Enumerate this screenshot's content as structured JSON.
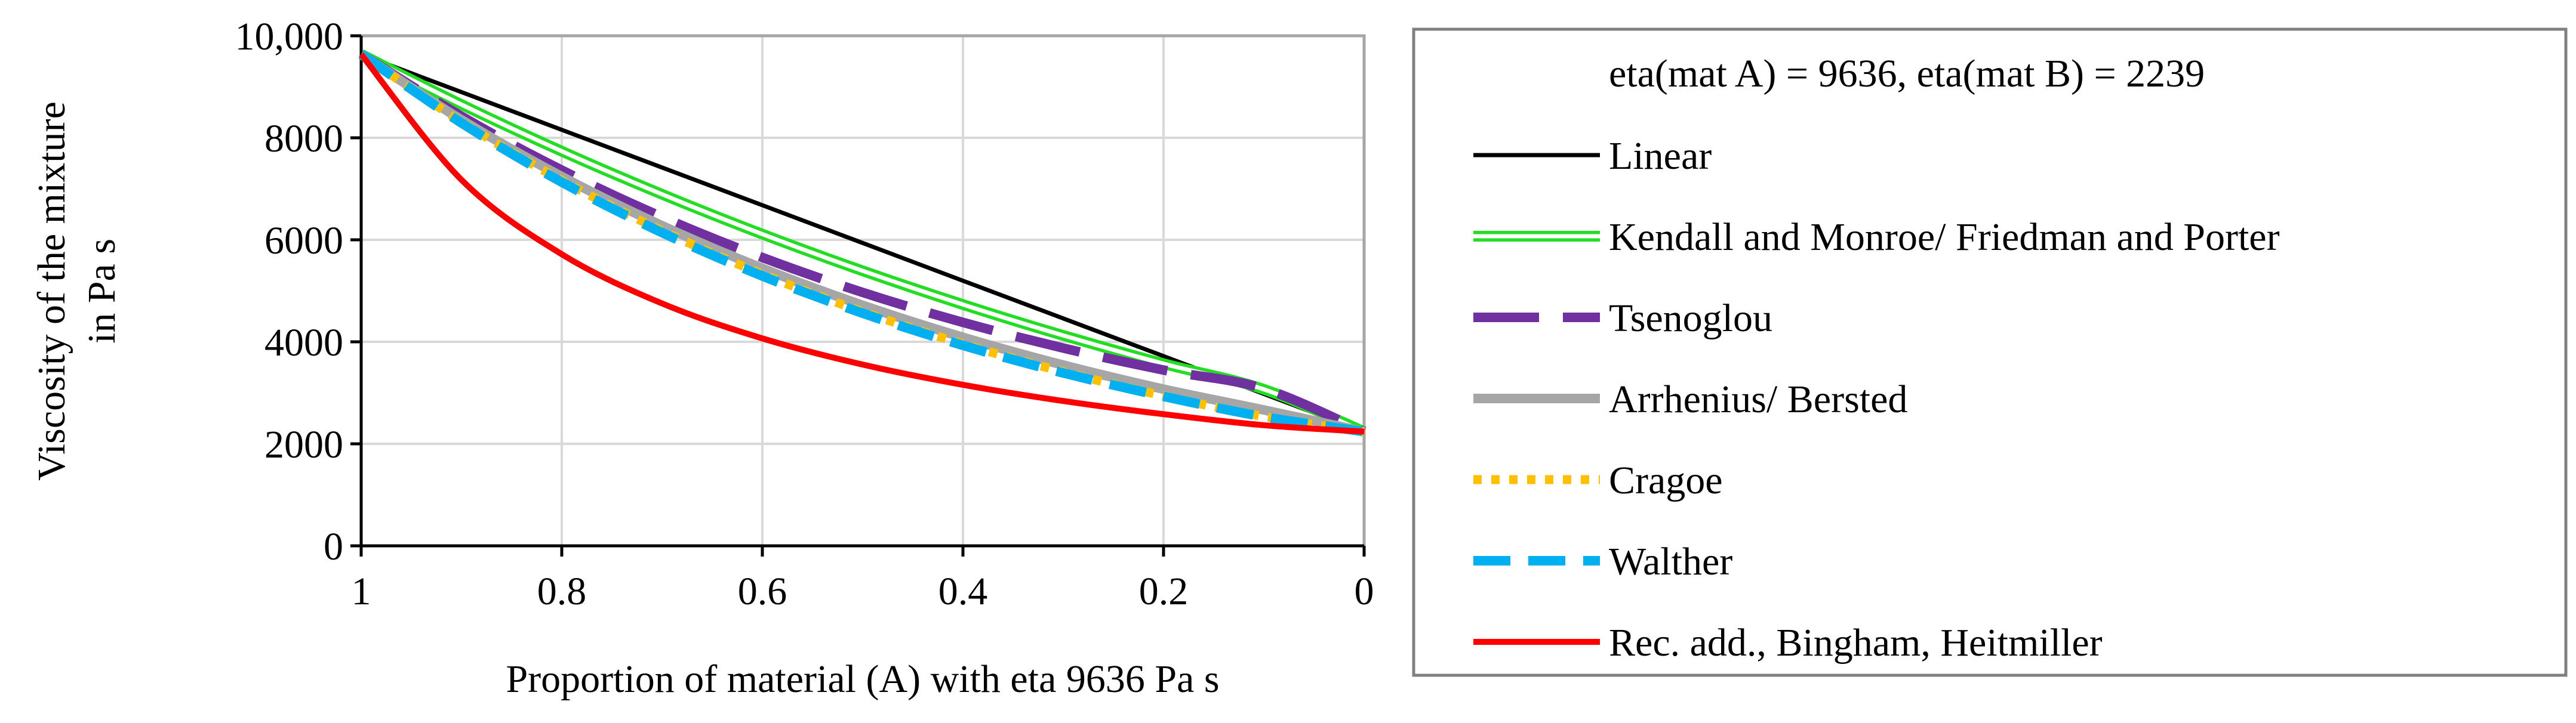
{
  "chart_data": {
    "type": "line",
    "title": "",
    "xlabel": "Proportion of material (A) with eta 9636 Pa s",
    "ylabel_lines": [
      "Viscosity of the mixture",
      "in Pa s"
    ],
    "xlim": [
      1,
      0
    ],
    "ylim": [
      0,
      10000
    ],
    "x_ticks": [
      1,
      0.8,
      0.6,
      0.4,
      0.2,
      0
    ],
    "x_tick_labels": [
      "1",
      "0.8",
      "0.6",
      "0.4",
      "0.2",
      "0"
    ],
    "y_ticks": [
      0,
      2000,
      4000,
      6000,
      8000,
      10000
    ],
    "y_tick_labels": [
      "0",
      "2000",
      "4000",
      "6000",
      "8000",
      "10,000"
    ],
    "grid": true,
    "legend_position": "right",
    "legend_title": "eta(mat A) = 9636, eta(mat B) = 2239",
    "x": [
      1,
      0.9,
      0.8,
      0.7,
      0.6,
      0.5,
      0.4,
      0.3,
      0.2,
      0.1,
      0
    ],
    "series": [
      {
        "name": "Linear",
        "color": "#000000",
        "style": "solid",
        "values": [
          9636,
          8896,
          8157,
          7417,
          6678,
          5938,
          5198,
          4459,
          3719,
          2979,
          2239
        ]
      },
      {
        "name": "Kendall and Monroe/ Friedman and Porter",
        "color": "#22dd22",
        "style": "double",
        "values": [
          9636,
          8651,
          7737,
          6892,
          6111,
          5392,
          4731,
          4125,
          3571,
          3068,
          2239
        ]
      },
      {
        "name": "Tsenoglou",
        "color": "#7030a0",
        "style": "longdash",
        "values": [
          9636,
          8423,
          7366,
          6448,
          5654,
          4969,
          4381,
          3877,
          3447,
          3082,
          2239
        ]
      },
      {
        "name": "Arrhenius/ Bersted",
        "color": "#a6a6a6",
        "style": "solid",
        "values": [
          9636,
          8353,
          7241,
          6277,
          5441,
          4717,
          4089,
          3545,
          3073,
          2664,
          2239
        ]
      },
      {
        "name": "Cragoe",
        "color": "#ffc000",
        "style": "dotted",
        "values": [
          9636,
          8310,
          7165,
          6178,
          5326,
          4591,
          3958,
          3412,
          2941,
          2536,
          2239
        ]
      },
      {
        "name": "Walther",
        "color": "#00b0f0",
        "style": "dashed",
        "values": [
          9636,
          8290,
          7130,
          6140,
          5290,
          4560,
          3930,
          3390,
          2930,
          2530,
          2239
        ]
      },
      {
        "name": "Rec. add., Bingham, Heitmiller",
        "color": "#ff0000",
        "style": "solid",
        "values": [
          9636,
          7176,
          5717,
          4752,
          4067,
          3554,
          3157,
          2840,
          2581,
          2365,
          2239
        ]
      }
    ]
  }
}
